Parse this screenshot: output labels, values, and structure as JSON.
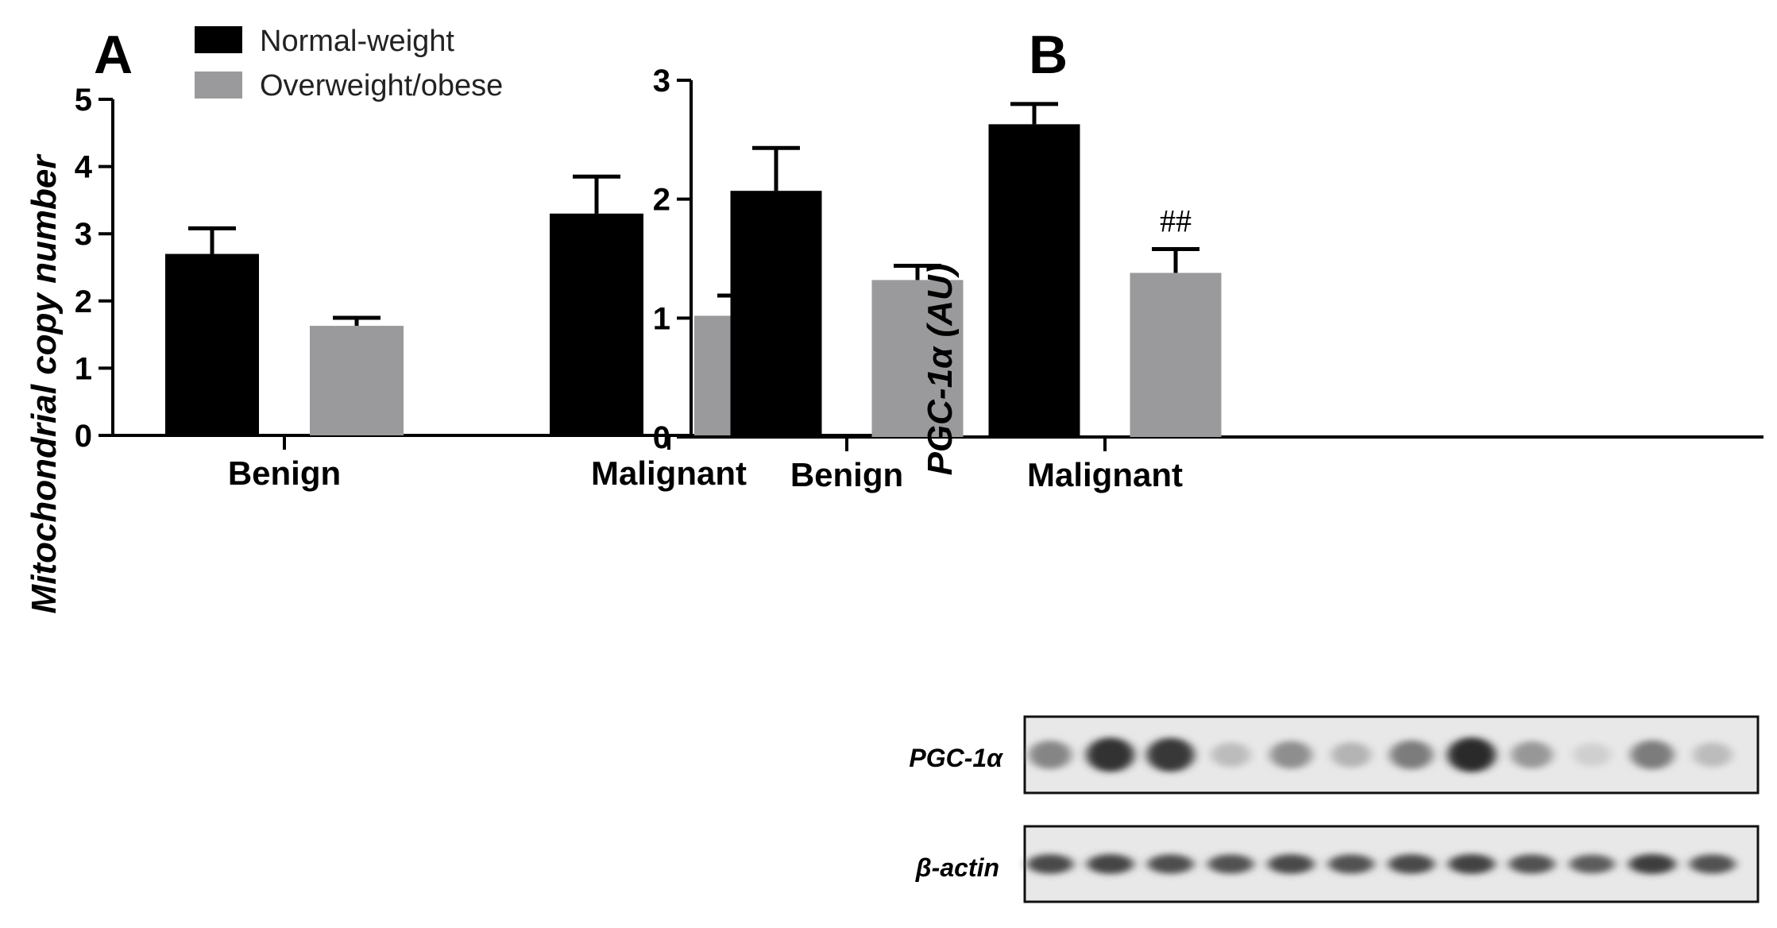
{
  "colors": {
    "normal": "#000000",
    "overweight": "#9a9a9c",
    "axis": "#000000"
  },
  "legend": [
    {
      "label": "Normal-weight",
      "color": "#000000"
    },
    {
      "label": "Overweight/obese",
      "color": "#9a9a9c"
    }
  ],
  "chart_data": [
    {
      "panel": "A",
      "type": "bar",
      "categories": [
        "Benign",
        "Malignant"
      ],
      "ylabel": "Mitochondrial copy number",
      "ylim": [
        0,
        5
      ],
      "yticks": [
        "0",
        "1",
        "2",
        "3",
        "4",
        "5"
      ],
      "series": [
        {
          "name": "Normal-weight",
          "values": [
            2.7,
            3.3
          ],
          "errors": [
            0.38,
            0.55
          ]
        },
        {
          "name": "Overweight/obese",
          "values": [
            1.63,
            1.78
          ],
          "errors": [
            0.12,
            0.3
          ]
        }
      ],
      "annotations": [
        {
          "category": "Malignant",
          "series": 1,
          "text": "#"
        }
      ]
    },
    {
      "panel": "B",
      "type": "bar",
      "categories": [
        "Benign",
        "Malignant"
      ],
      "ylabel": "PGC-1α (AU)",
      "ylim": [
        0,
        3
      ],
      "yticks": [
        "0",
        "1",
        "2",
        "3"
      ],
      "series": [
        {
          "name": "Normal-weight",
          "values": [
            2.07,
            2.63
          ],
          "errors": [
            0.36,
            0.17
          ]
        },
        {
          "name": "Overweight/obese",
          "values": [
            1.32,
            1.38
          ],
          "errors": [
            0.12,
            0.2
          ]
        }
      ],
      "annotations": [
        {
          "category": "Malignant",
          "series": 1,
          "text": "##"
        }
      ]
    }
  ],
  "blot": {
    "rows": [
      {
        "label": "PGC-1α",
        "intensities": [
          0.5,
          0.95,
          0.92,
          0.2,
          0.45,
          0.25,
          0.55,
          0.98,
          0.4,
          0.1,
          0.55,
          0.2
        ]
      },
      {
        "label": "β-actin",
        "intensities": [
          0.82,
          0.85,
          0.8,
          0.78,
          0.82,
          0.78,
          0.82,
          0.86,
          0.78,
          0.72,
          0.88,
          0.78
        ]
      }
    ]
  }
}
